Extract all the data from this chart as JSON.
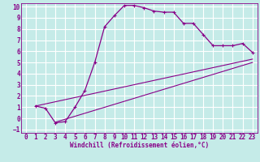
{
  "xlabel": "Windchill (Refroidissement éolien,°C)",
  "bg_color": "#c5ebe8",
  "grid_color": "#ffffff",
  "line_color": "#880088",
  "xlim": [
    -0.5,
    23.5
  ],
  "ylim": [
    -1.3,
    10.3
  ],
  "xticks": [
    0,
    1,
    2,
    3,
    4,
    5,
    6,
    7,
    8,
    9,
    10,
    11,
    12,
    13,
    14,
    15,
    16,
    17,
    18,
    19,
    20,
    21,
    22,
    23
  ],
  "yticks": [
    -1,
    0,
    1,
    2,
    3,
    4,
    5,
    6,
    7,
    8,
    9,
    10
  ],
  "curve1_x": [
    1,
    2,
    3,
    4,
    5,
    6,
    7,
    8,
    9,
    10,
    11,
    12,
    13,
    14,
    15,
    16,
    17,
    18,
    19,
    20,
    21,
    22,
    23
  ],
  "curve1_y": [
    1.1,
    0.9,
    -0.4,
    -0.3,
    1.0,
    2.5,
    5.0,
    8.2,
    9.2,
    10.1,
    10.1,
    9.9,
    9.6,
    9.5,
    9.5,
    8.5,
    8.5,
    7.5,
    6.5,
    6.5,
    6.5,
    6.7,
    5.9
  ],
  "line2_x": [
    1,
    23
  ],
  "line2_y": [
    1.1,
    5.3
  ],
  "line3_x": [
    3,
    23
  ],
  "line3_y": [
    -0.35,
    5.0
  ],
  "tick_fontsize": 5.5,
  "xlabel_fontsize": 5.5
}
